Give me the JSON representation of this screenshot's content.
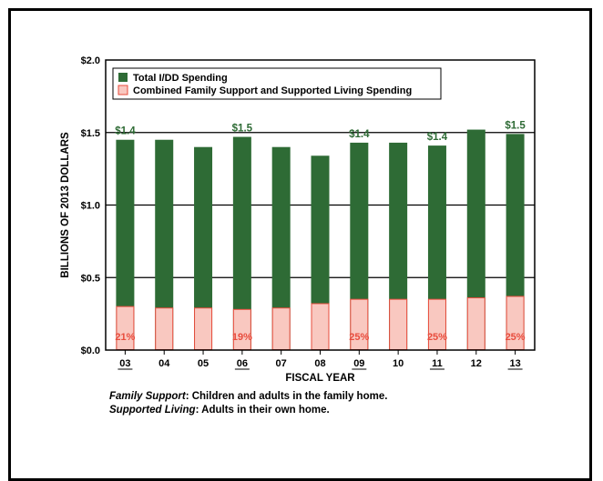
{
  "chart_data": {
    "type": "bar",
    "categories": [
      "03",
      "04",
      "05",
      "06",
      "07",
      "08",
      "09",
      "10",
      "11",
      "12",
      "13"
    ],
    "underlined_categories": [
      "03",
      "06",
      "09",
      "11",
      "13"
    ],
    "series": [
      {
        "name": "Total I/DD Spending",
        "values": [
          1.45,
          1.45,
          1.4,
          1.47,
          1.4,
          1.34,
          1.43,
          1.43,
          1.41,
          1.52,
          1.49
        ]
      },
      {
        "name": "Combined Family Support and Supported Living Spending",
        "values": [
          0.3,
          0.29,
          0.29,
          0.28,
          0.29,
          0.32,
          0.35,
          0.35,
          0.35,
          0.36,
          0.37
        ]
      }
    ],
    "value_labels": {
      "03": "$1.4",
      "06": "$1.5",
      "09": "$1.4",
      "11": "$1.4",
      "13": "$1.5"
    },
    "percent_labels": {
      "03": "21%",
      "06": "19%",
      "09": "25%",
      "11": "25%",
      "13": "25%"
    },
    "y_ticks": [
      "$0.0",
      "$0.5",
      "$1.0",
      "$1.5",
      "$2.0"
    ],
    "ylim": [
      0,
      2.0
    ],
    "xlabel": "FISCAL YEAR",
    "ylabel": "BILLIONS OF 2013 DOLLARS",
    "legend_position": "top-left",
    "grid": "horizontal",
    "colors": {
      "total": "#2e6b35",
      "combined": "#f9c8c0",
      "combined_edge": "#e84c3d",
      "label_green": "#2e6b35",
      "label_red": "#e84c3d"
    }
  },
  "notes": [
    {
      "term": "Family Support",
      "text": ": Children and adults in the family home."
    },
    {
      "term": "Supported Living",
      "text": ": Adults in their own home."
    }
  ]
}
